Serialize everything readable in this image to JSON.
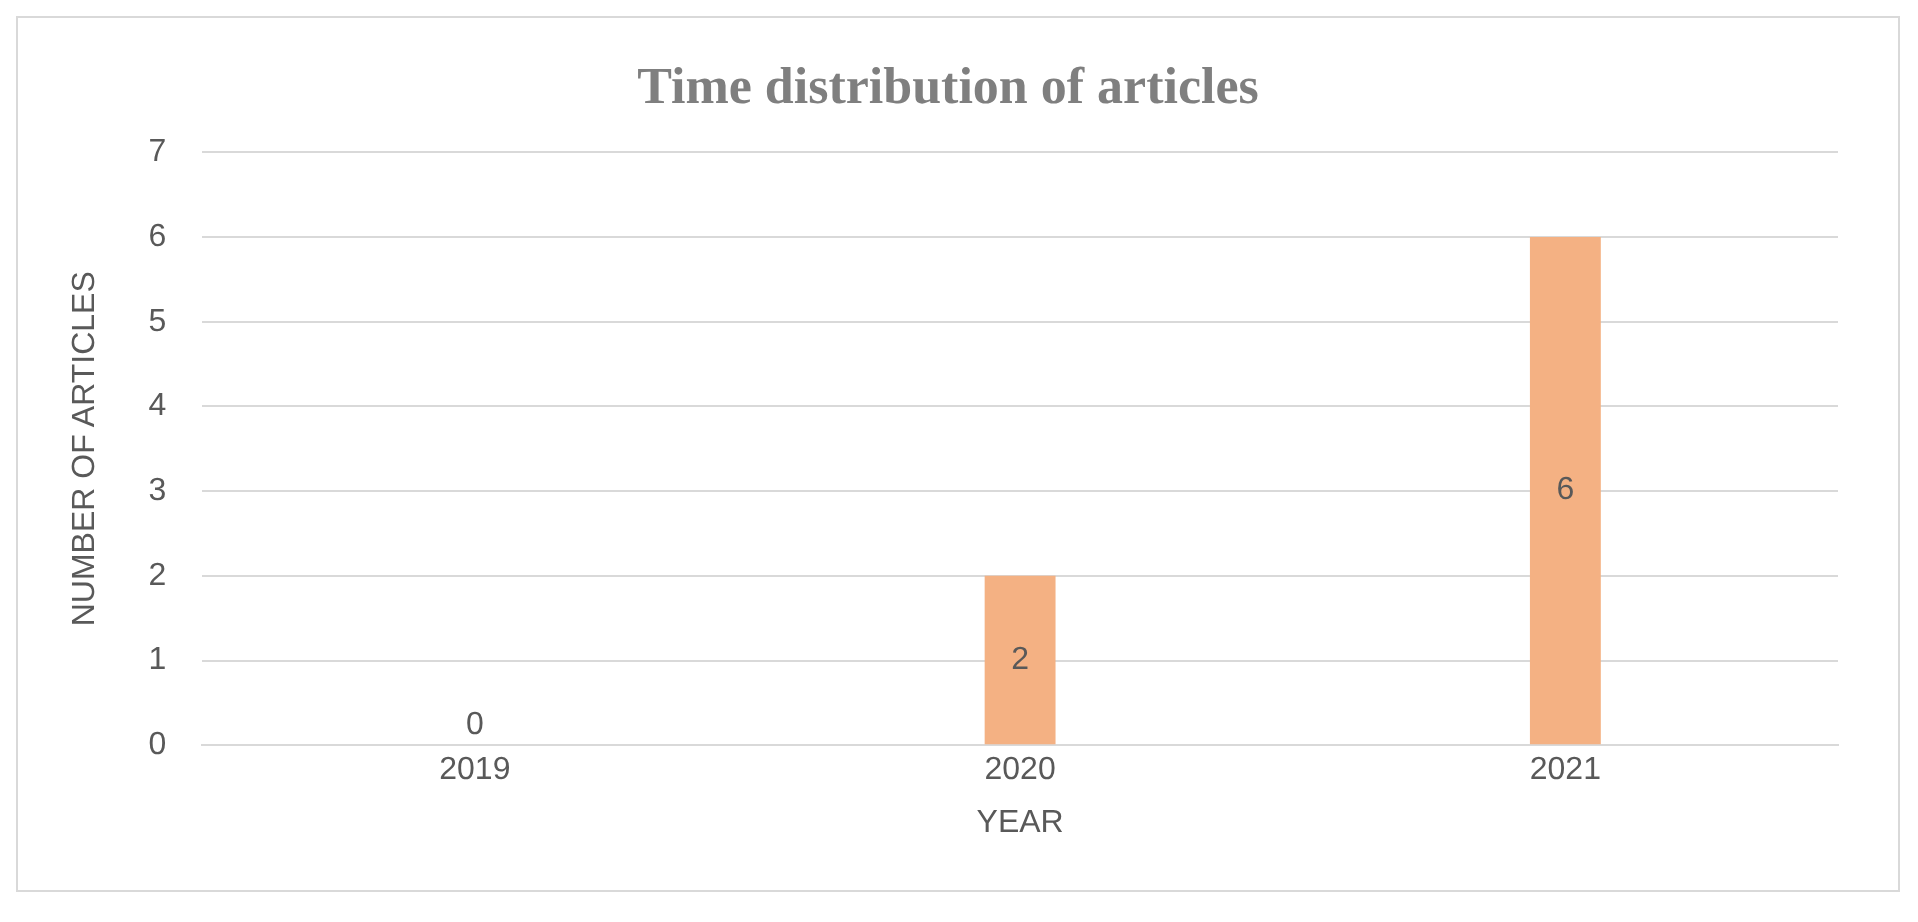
{
  "chart_data": {
    "type": "bar",
    "title": "Time distribution of articles",
    "xlabel": "YEAR",
    "ylabel": "NUMBER OF ARTICLES",
    "categories": [
      "2019",
      "2020",
      "2021"
    ],
    "values": [
      0,
      2,
      6
    ],
    "color": "#f4b183",
    "ylim": [
      0,
      7
    ],
    "yticks": [
      0,
      1,
      2,
      3,
      4,
      5,
      6,
      7
    ],
    "grid": "y",
    "data_labels": true,
    "legend": false
  }
}
